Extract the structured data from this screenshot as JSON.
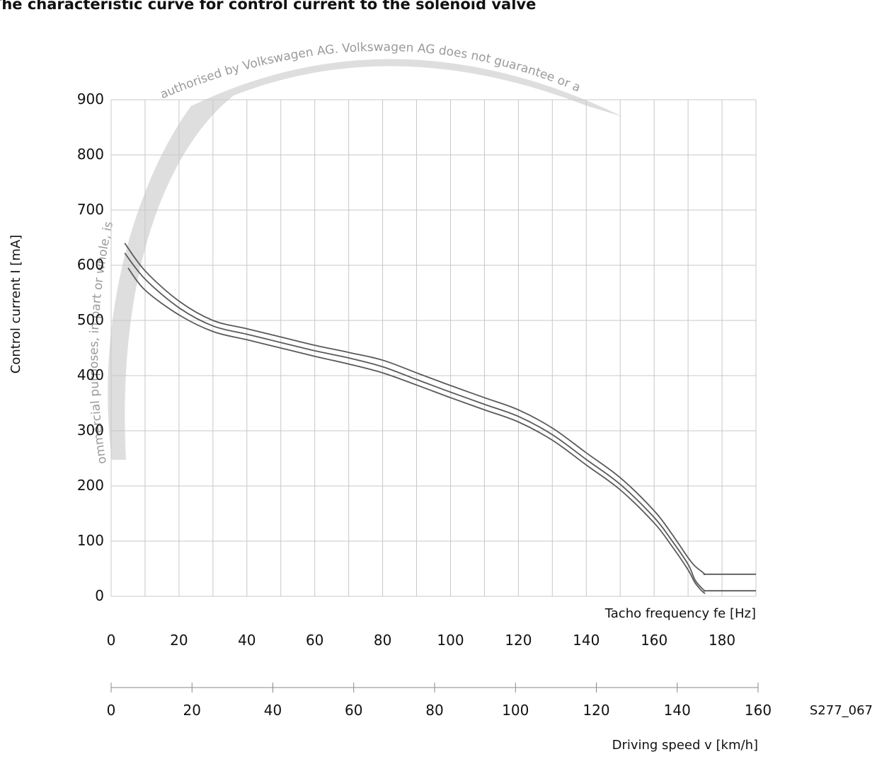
{
  "chart_data": {
    "type": "line",
    "title": "The characteristic curve for control current to the solenoid valve",
    "ylabel": "Control current I [mA]",
    "xlabel": "Tacho frequency fe [Hz]",
    "x2label": "Driving speed v [km/h]",
    "ylim": [
      0,
      900
    ],
    "xlim": [
      0,
      190
    ],
    "x2lim": [
      0,
      160
    ],
    "y_ticks": [
      0,
      100,
      200,
      300,
      400,
      500,
      600,
      700,
      800,
      900
    ],
    "x_ticks": [
      0,
      20,
      40,
      60,
      80,
      100,
      120,
      140,
      160,
      180
    ],
    "x2_ticks": [
      0,
      20,
      40,
      60,
      80,
      100,
      120,
      140,
      160
    ],
    "grid": true,
    "figure_id": "S277_067",
    "series": [
      {
        "x": [
          4,
          10,
          20,
          30,
          40,
          50,
          60,
          70,
          80,
          90,
          100,
          110,
          120,
          130,
          140,
          150,
          160,
          165,
          170,
          172,
          174,
          175,
          176,
          190
        ],
        "y": [
          640,
          590,
          535,
          500,
          485,
          470,
          455,
          442,
          428,
          405,
          382,
          360,
          338,
          305,
          260,
          215,
          155,
          115,
          70,
          55,
          45,
          40,
          40,
          40
        ]
      },
      {
        "x": [
          4,
          10,
          20,
          30,
          40,
          50,
          60,
          70,
          80,
          90,
          100,
          110,
          120,
          130,
          140,
          150,
          160,
          165,
          170,
          172,
          174,
          175,
          176,
          190
        ],
        "y": [
          622,
          575,
          523,
          490,
          475,
          460,
          445,
          432,
          416,
          393,
          370,
          348,
          326,
          293,
          248,
          203,
          143,
          103,
          58,
          30,
          15,
          10,
          10,
          10
        ]
      },
      {
        "x": [
          5,
          10,
          20,
          30,
          40,
          50,
          60,
          70,
          80,
          90,
          100,
          110,
          120,
          130,
          140,
          150,
          160,
          165,
          170,
          172,
          174,
          175
        ],
        "y": [
          595,
          555,
          510,
          480,
          465,
          450,
          435,
          421,
          405,
          383,
          360,
          338,
          316,
          283,
          238,
          193,
          133,
          93,
          48,
          25,
          10,
          5
        ]
      }
    ]
  },
  "watermark": {
    "color": "#dedede",
    "text_top": "authorised by Volkswagen AG. Volkswagen AG does not guarantee or a",
    "text_left": "ommercial purposes, in part or whole, is"
  }
}
